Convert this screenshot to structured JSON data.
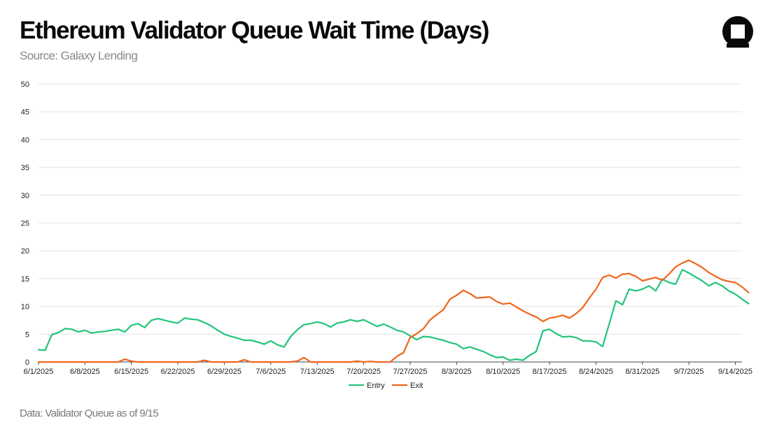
{
  "header": {
    "title": "Ethereum Validator Queue Wait Time (Days)",
    "subtitle": "Source: Galaxy Lending"
  },
  "footer": {
    "note": "Data: Validator Queue as of 9/15"
  },
  "logo": {
    "icon": "galaxy-logo-icon"
  },
  "colors": {
    "entry": "#22c47a",
    "exit": "#f0651e",
    "grid": "#e3e3e3",
    "axis": "#444444"
  },
  "chart_data": {
    "type": "line",
    "title": "Ethereum Validator Queue Wait Time (Days)",
    "xlabel": "",
    "ylabel": "",
    "ylim": [
      0,
      50
    ],
    "yticks": [
      0,
      5,
      10,
      15,
      20,
      25,
      30,
      35,
      40,
      45,
      50
    ],
    "x_range": [
      "6/1/2025",
      "9/15/2025"
    ],
    "xtick_labels": [
      "6/1/2025",
      "6/8/2025",
      "6/15/2025",
      "6/22/2025",
      "6/29/2025",
      "7/6/2025",
      "7/13/2025",
      "7/20/2025",
      "7/27/2025",
      "8/3/2025",
      "8/10/2025",
      "8/17/2025",
      "8/24/2025",
      "8/31/2025",
      "9/7/2025",
      "9/14/2025"
    ],
    "grid": true,
    "legend": "bottom-center",
    "series": [
      {
        "name": "Entry",
        "color": "#22c47a",
        "points": [
          [
            "6/1/2025",
            2.2
          ],
          [
            "6/2/2025",
            2.1
          ],
          [
            "6/3/2025",
            4.9
          ],
          [
            "6/4/2025",
            5.3
          ],
          [
            "6/5/2025",
            6.0
          ],
          [
            "6/6/2025",
            5.9
          ],
          [
            "6/7/2025",
            5.4
          ],
          [
            "6/8/2025",
            5.7
          ],
          [
            "6/9/2025",
            5.2
          ],
          [
            "6/10/2025",
            5.4
          ],
          [
            "6/11/2025",
            5.5
          ],
          [
            "6/12/2025",
            5.7
          ],
          [
            "6/13/2025",
            5.9
          ],
          [
            "6/14/2025",
            5.4
          ],
          [
            "6/15/2025",
            6.6
          ],
          [
            "6/16/2025",
            6.9
          ],
          [
            "6/17/2025",
            6.2
          ],
          [
            "6/18/2025",
            7.5
          ],
          [
            "6/19/2025",
            7.8
          ],
          [
            "6/20/2025",
            7.5
          ],
          [
            "6/21/2025",
            7.2
          ],
          [
            "6/22/2025",
            7.0
          ],
          [
            "6/23/2025",
            7.9
          ],
          [
            "6/24/2025",
            7.7
          ],
          [
            "6/25/2025",
            7.6
          ],
          [
            "6/26/2025",
            7.1
          ],
          [
            "6/27/2025",
            6.5
          ],
          [
            "6/28/2025",
            5.7
          ],
          [
            "6/29/2025",
            5.0
          ],
          [
            "6/30/2025",
            4.6
          ],
          [
            "7/1/2025",
            4.3
          ],
          [
            "7/2/2025",
            3.9
          ],
          [
            "7/3/2025",
            3.9
          ],
          [
            "7/4/2025",
            3.6
          ],
          [
            "7/5/2025",
            3.2
          ],
          [
            "7/6/2025",
            3.8
          ],
          [
            "7/7/2025",
            3.1
          ],
          [
            "7/8/2025",
            2.7
          ],
          [
            "7/9/2025",
            4.6
          ],
          [
            "7/10/2025",
            5.8
          ],
          [
            "7/11/2025",
            6.7
          ],
          [
            "7/12/2025",
            6.9
          ],
          [
            "7/13/2025",
            7.2
          ],
          [
            "7/14/2025",
            6.9
          ],
          [
            "7/15/2025",
            6.3
          ],
          [
            "7/16/2025",
            7.0
          ],
          [
            "7/17/2025",
            7.2
          ],
          [
            "7/18/2025",
            7.6
          ],
          [
            "7/19/2025",
            7.3
          ],
          [
            "7/20/2025",
            7.6
          ],
          [
            "7/21/2025",
            7.0
          ],
          [
            "7/22/2025",
            6.4
          ],
          [
            "7/23/2025",
            6.8
          ],
          [
            "7/24/2025",
            6.3
          ],
          [
            "7/25/2025",
            5.7
          ],
          [
            "7/26/2025",
            5.4
          ],
          [
            "7/27/2025",
            4.7
          ],
          [
            "7/28/2025",
            4.0
          ],
          [
            "7/29/2025",
            4.6
          ],
          [
            "7/30/2025",
            4.5
          ],
          [
            "7/31/2025",
            4.2
          ],
          [
            "8/1/2025",
            3.9
          ],
          [
            "8/2/2025",
            3.5
          ],
          [
            "8/3/2025",
            3.2
          ],
          [
            "8/4/2025",
            2.4
          ],
          [
            "8/5/2025",
            2.7
          ],
          [
            "8/6/2025",
            2.3
          ],
          [
            "8/7/2025",
            1.9
          ],
          [
            "8/8/2025",
            1.3
          ],
          [
            "8/9/2025",
            0.8
          ],
          [
            "8/10/2025",
            0.9
          ],
          [
            "8/11/2025",
            0.3
          ],
          [
            "8/12/2025",
            0.5
          ],
          [
            "8/13/2025",
            0.3
          ],
          [
            "8/14/2025",
            1.2
          ],
          [
            "8/15/2025",
            1.9
          ],
          [
            "8/16/2025",
            5.6
          ],
          [
            "8/17/2025",
            5.9
          ],
          [
            "8/18/2025",
            5.1
          ],
          [
            "8/19/2025",
            4.5
          ],
          [
            "8/20/2025",
            4.6
          ],
          [
            "8/21/2025",
            4.4
          ],
          [
            "8/22/2025",
            3.8
          ],
          [
            "8/23/2025",
            3.8
          ],
          [
            "8/24/2025",
            3.6
          ],
          [
            "8/25/2025",
            2.8
          ],
          [
            "8/26/2025",
            6.9
          ],
          [
            "8/27/2025",
            11.0
          ],
          [
            "8/28/2025",
            10.3
          ],
          [
            "8/29/2025",
            13.1
          ],
          [
            "8/30/2025",
            12.8
          ],
          [
            "8/31/2025",
            13.1
          ],
          [
            "9/1/2025",
            13.7
          ],
          [
            "9/2/2025",
            12.8
          ],
          [
            "9/3/2025",
            14.9
          ],
          [
            "9/4/2025",
            14.3
          ],
          [
            "9/5/2025",
            14.0
          ],
          [
            "9/6/2025",
            16.6
          ],
          [
            "9/7/2025",
            16.0
          ],
          [
            "9/8/2025",
            15.3
          ],
          [
            "9/9/2025",
            14.6
          ],
          [
            "9/10/2025",
            13.7
          ],
          [
            "9/11/2025",
            14.3
          ],
          [
            "9/12/2025",
            13.7
          ],
          [
            "9/13/2025",
            12.8
          ],
          [
            "9/14/2025",
            12.2
          ],
          [
            "9/15/2025",
            11.3
          ],
          [
            "9/16/2025",
            10.5
          ]
        ]
      },
      {
        "name": "Exit",
        "color": "#f0651e",
        "points": [
          [
            "6/1/2025",
            0
          ],
          [
            "6/13/2025",
            0
          ],
          [
            "6/14/2025",
            0.5
          ],
          [
            "6/15/2025",
            0.15
          ],
          [
            "6/16/2025",
            0
          ],
          [
            "6/25/2025",
            0
          ],
          [
            "6/26/2025",
            0.3
          ],
          [
            "6/27/2025",
            0
          ],
          [
            "7/1/2025",
            0
          ],
          [
            "7/2/2025",
            0.4
          ],
          [
            "7/3/2025",
            0
          ],
          [
            "7/9/2025",
            0
          ],
          [
            "7/10/2025",
            0.15
          ],
          [
            "7/11/2025",
            0.8
          ],
          [
            "7/12/2025",
            0
          ],
          [
            "7/18/2025",
            0
          ],
          [
            "7/19/2025",
            0.15
          ],
          [
            "7/20/2025",
            0
          ],
          [
            "7/21/2025",
            0.1
          ],
          [
            "7/22/2025",
            0
          ],
          [
            "7/24/2025",
            0
          ],
          [
            "7/25/2025",
            1.0
          ],
          [
            "7/26/2025",
            1.7
          ],
          [
            "7/27/2025",
            4.4
          ],
          [
            "7/28/2025",
            5.1
          ],
          [
            "7/29/2025",
            6.0
          ],
          [
            "7/30/2025",
            7.6
          ],
          [
            "7/31/2025",
            8.5
          ],
          [
            "8/1/2025",
            9.4
          ],
          [
            "8/2/2025",
            11.3
          ],
          [
            "8/3/2025",
            12.0
          ],
          [
            "8/4/2025",
            12.9
          ],
          [
            "8/5/2025",
            12.3
          ],
          [
            "8/6/2025",
            11.5
          ],
          [
            "8/7/2025",
            11.6
          ],
          [
            "8/8/2025",
            11.7
          ],
          [
            "8/9/2025",
            10.9
          ],
          [
            "8/10/2025",
            10.4
          ],
          [
            "8/11/2025",
            10.6
          ],
          [
            "8/12/2025",
            9.9
          ],
          [
            "8/13/2025",
            9.2
          ],
          [
            "8/14/2025",
            8.6
          ],
          [
            "8/15/2025",
            8.1
          ],
          [
            "8/16/2025",
            7.3
          ],
          [
            "8/17/2025",
            7.9
          ],
          [
            "8/18/2025",
            8.1
          ],
          [
            "8/19/2025",
            8.4
          ],
          [
            "8/20/2025",
            7.9
          ],
          [
            "8/21/2025",
            8.7
          ],
          [
            "8/22/2025",
            9.8
          ],
          [
            "8/23/2025",
            11.5
          ],
          [
            "8/24/2025",
            13.1
          ],
          [
            "8/25/2025",
            15.2
          ],
          [
            "8/26/2025",
            15.6
          ],
          [
            "8/27/2025",
            15.1
          ],
          [
            "8/28/2025",
            15.8
          ],
          [
            "8/29/2025",
            15.9
          ],
          [
            "8/30/2025",
            15.4
          ],
          [
            "8/31/2025",
            14.6
          ],
          [
            "9/1/2025",
            14.9
          ],
          [
            "9/2/2025",
            15.2
          ],
          [
            "9/3/2025",
            14.7
          ],
          [
            "9/4/2025",
            15.8
          ],
          [
            "9/5/2025",
            17.1
          ],
          [
            "9/6/2025",
            17.8
          ],
          [
            "9/7/2025",
            18.3
          ],
          [
            "9/8/2025",
            17.7
          ],
          [
            "9/9/2025",
            17.0
          ],
          [
            "9/10/2025",
            16.1
          ],
          [
            "9/11/2025",
            15.4
          ],
          [
            "9/12/2025",
            14.8
          ],
          [
            "9/13/2025",
            14.5
          ],
          [
            "9/14/2025",
            14.3
          ],
          [
            "9/15/2025",
            13.5
          ],
          [
            "9/16/2025",
            12.5
          ]
        ]
      }
    ]
  }
}
